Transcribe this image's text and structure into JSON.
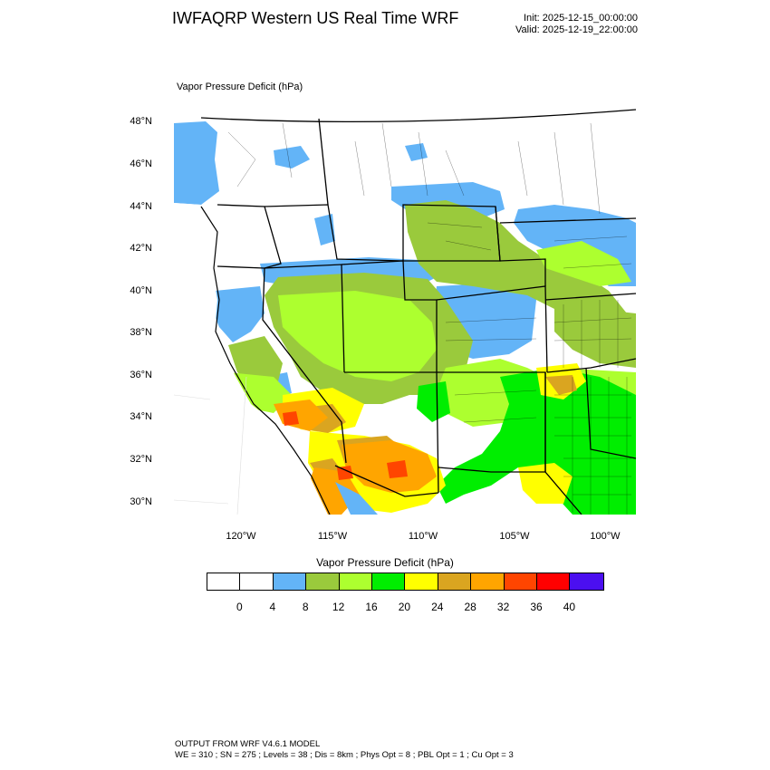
{
  "header": {
    "title": "IWFAQRP Western US Real Time WRF",
    "init": "Init: 2025-12-15_00:00:00",
    "valid": "Valid: 2025-12-19_22:00:00"
  },
  "map": {
    "field_label": "Vapor Pressure Deficit   (hPa)",
    "lat_labels": [
      "48°N",
      "46°N",
      "44°N",
      "42°N",
      "40°N",
      "38°N",
      "36°N",
      "34°N",
      "32°N",
      "30°N"
    ],
    "lon_labels": [
      "120°W",
      "115°W",
      "110°W",
      "105°W",
      "100°W"
    ]
  },
  "legend": {
    "title": "Vapor Pressure Deficit  (hPa)",
    "colors": [
      "#ffffff",
      "#ffffff",
      "#63b4f7",
      "#9aca3c",
      "#adff2f",
      "#00ee00",
      "#ffff00",
      "#daa520",
      "#ffa500",
      "#ff4500",
      "#ff0000",
      "#4b0ff0"
    ],
    "ticks": [
      "0",
      "4",
      "8",
      "12",
      "16",
      "20",
      "24",
      "28",
      "32",
      "36",
      "40"
    ]
  },
  "footer": {
    "line1": "OUTPUT FROM WRF V4.6.1 MODEL",
    "line2": "WE = 310 ; SN = 275 ; Levels = 38 ; Dis = 8km ; Phys Opt = 8 ; PBL Opt = 1 ; Cu Opt = 3"
  }
}
